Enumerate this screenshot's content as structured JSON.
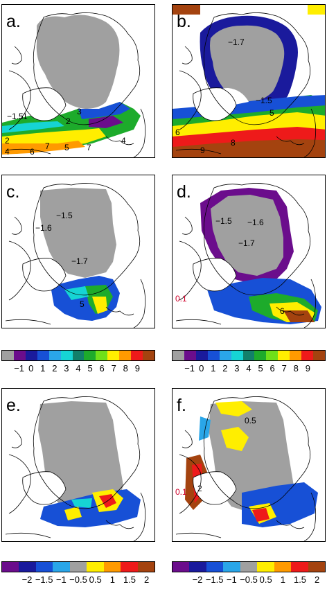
{
  "panels": [
    {
      "label": "a.",
      "contour_labels": [
        "-1.5",
        "1",
        "2",
        "2",
        "3",
        "4",
        "4",
        "5",
        "6",
        "7",
        "7"
      ]
    },
    {
      "label": "b.",
      "contour_labels": [
        "-1.7",
        "-1.5",
        "5",
        "6",
        "8",
        "9"
      ]
    },
    {
      "label": "c.",
      "contour_labels": [
        "-1.5",
        "-1.6",
        "-1.7",
        "5"
      ]
    },
    {
      "label": "d.",
      "contour_labels": [
        "-1.5",
        "-1.6",
        "-1.7",
        "0.1",
        "6"
      ]
    },
    {
      "label": "e.",
      "contour_labels": []
    },
    {
      "label": "f.",
      "contour_labels": [
        "0.5",
        "0.1",
        "2"
      ]
    }
  ],
  "colorbars": {
    "temperature": {
      "ticks": [
        "-1",
        "0",
        "1",
        "2",
        "3",
        "4",
        "5",
        "6",
        "7",
        "8",
        "9"
      ],
      "colors": [
        "#a0a0a0",
        "#6b0d8c",
        "#1a1a9c",
        "#1750d6",
        "#2aa6e8",
        "#16d4d4",
        "#12806a",
        "#1dab2b",
        "#6fe019",
        "#ffee00",
        "#ff9a00",
        "#ee1a1a",
        "#a4430f"
      ]
    },
    "difference": {
      "ticks": [
        "-2",
        "-1.5",
        "-1",
        "-0.5",
        "0.5",
        "1",
        "1.5",
        "2"
      ],
      "colors": [
        "#6b0d8c",
        "#1a1a9c",
        "#1750d6",
        "#2aa6e8",
        "#a0a0a0",
        "#ffee00",
        "#ff9a00",
        "#ee1a1a",
        "#a4430f"
      ]
    }
  }
}
